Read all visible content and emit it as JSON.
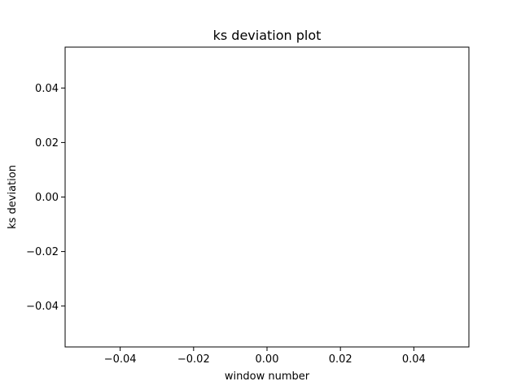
{
  "chart_data": {
    "type": "line",
    "title": "ks deviation plot",
    "xlabel": "window number",
    "ylabel": "ks deviation",
    "xlim": [
      -0.055,
      0.055
    ],
    "ylim": [
      -0.055,
      0.055
    ],
    "xticks": [
      -0.04,
      -0.02,
      0.0,
      0.02,
      0.04
    ],
    "xtick_labels": [
      "−0.04",
      "−0.02",
      "0.00",
      "0.02",
      "0.04"
    ],
    "yticks": [
      -0.04,
      -0.02,
      0.0,
      0.02,
      0.04
    ],
    "ytick_labels": [
      "−0.04",
      "−0.02",
      "0.00",
      "0.02",
      "0.04"
    ],
    "grid": false,
    "series": [
      {
        "x": [],
        "y": []
      }
    ],
    "colors": {
      "axes": "#000000",
      "background": "#ffffff",
      "line": "#1f77b4"
    }
  }
}
